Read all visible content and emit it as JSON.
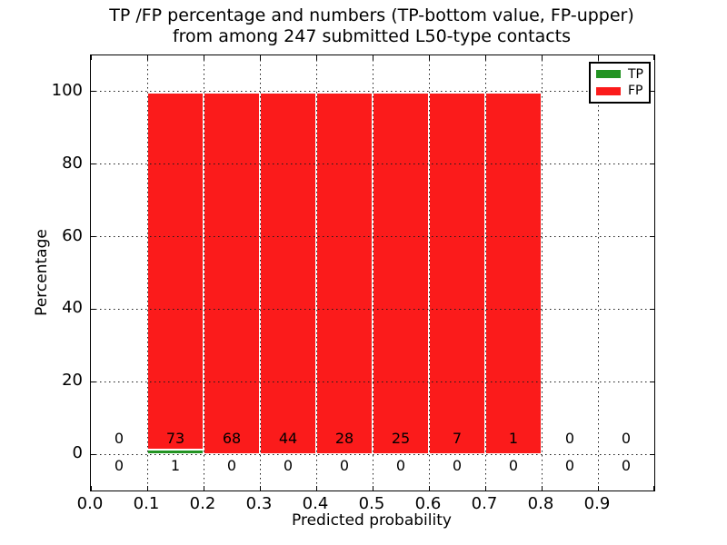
{
  "title": {
    "line1": "TP /FP percentage and numbers (TP-bottom value, FP-upper)",
    "line2": "from among 247 submitted L50-type contacts"
  },
  "axes": {
    "xlabel": "Predicted probability",
    "ylabel": "Percentage",
    "xlim": [
      0.0,
      1.0
    ],
    "ylim": [
      -10,
      110
    ],
    "x_ticks": [
      {
        "v": 0.0,
        "label": "0.0"
      },
      {
        "v": 0.1,
        "label": "0.1"
      },
      {
        "v": 0.2,
        "label": "0.2"
      },
      {
        "v": 0.3,
        "label": "0.3"
      },
      {
        "v": 0.4,
        "label": "0.4"
      },
      {
        "v": 0.5,
        "label": "0.5"
      },
      {
        "v": 0.6,
        "label": "0.6"
      },
      {
        "v": 0.7,
        "label": "0.7"
      },
      {
        "v": 0.8,
        "label": "0.8"
      },
      {
        "v": 0.9,
        "label": "0.9"
      },
      {
        "v": 1.0,
        "label": ""
      }
    ],
    "y_ticks": [
      {
        "v": 0,
        "label": "0"
      },
      {
        "v": 20,
        "label": "20"
      },
      {
        "v": 40,
        "label": "40"
      },
      {
        "v": 60,
        "label": "60"
      },
      {
        "v": 80,
        "label": "80"
      },
      {
        "v": 100,
        "label": "100"
      }
    ]
  },
  "legend": {
    "items": [
      {
        "label": "TP",
        "color": "#229322"
      },
      {
        "label": "FP",
        "color": "#fb1b1b"
      }
    ]
  },
  "chart_data": {
    "type": "bar",
    "stacked": true,
    "title": "TP /FP percentage and numbers (TP-bottom value, FP-upper) from among 247 submitted L50-type contacts",
    "xlabel": "Predicted probability",
    "ylabel": "Percentage",
    "xlim": [
      0.0,
      1.0
    ],
    "ylim": [
      -10,
      110
    ],
    "grid": "dotted, drawn above bars",
    "legend_position": "upper right",
    "total_submitted_contacts": 247,
    "bin_edges": [
      0.0,
      0.1,
      0.2,
      0.3,
      0.4,
      0.5,
      0.6,
      0.7,
      0.8,
      0.9,
      1.0
    ],
    "bin_centers": [
      0.05,
      0.15,
      0.25,
      0.35,
      0.45,
      0.55,
      0.65,
      0.75,
      0.85,
      0.95
    ],
    "series": [
      {
        "name": "TP",
        "color": "#229322",
        "counts": [
          0,
          1,
          0,
          0,
          0,
          0,
          0,
          0,
          0,
          0
        ],
        "percents": [
          0,
          1.35,
          0,
          0,
          0,
          0,
          0,
          0,
          0,
          0
        ]
      },
      {
        "name": "FP",
        "color": "#fb1b1b",
        "counts": [
          0,
          73,
          68,
          44,
          28,
          25,
          7,
          1,
          0,
          0
        ],
        "percents": [
          0,
          98.65,
          100,
          100,
          100,
          100,
          100,
          100,
          0,
          0
        ]
      }
    ],
    "annotation_rows": {
      "upper_is": "FP count per bin",
      "lower_is": "TP count per bin",
      "upper_y_percent": 4.25,
      "lower_y_percent": -3.25
    }
  }
}
